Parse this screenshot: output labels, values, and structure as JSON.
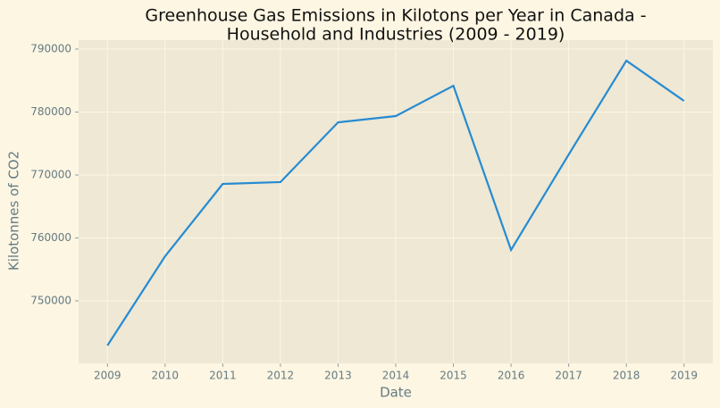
{
  "chart_data": {
    "type": "line",
    "title": [
      "Greenhouse Gas Emissions in Kilotons per Year in Canada -",
      "Household and Industries (2009 - 2019)"
    ],
    "xlabel": "Date",
    "ylabel": "Kilotonnes of CO2",
    "x": [
      2009,
      2010,
      2011,
      2012,
      2013,
      2014,
      2015,
      2016,
      2017,
      2018,
      2019
    ],
    "values": [
      742910,
      757090,
      768580,
      768870,
      778370,
      779360,
      784180,
      758090,
      773260,
      788160,
      781770
    ],
    "color": "#268bd2",
    "xlim": [
      2008.5,
      2019.5
    ],
    "xticks": [
      2009,
      2010,
      2011,
      2012,
      2013,
      2014,
      2015,
      2016,
      2017,
      2018,
      2019
    ],
    "ylim": [
      740070,
      791420
    ],
    "yticks": [
      750000,
      760000,
      770000,
      780000,
      790000
    ],
    "grid": true
  }
}
